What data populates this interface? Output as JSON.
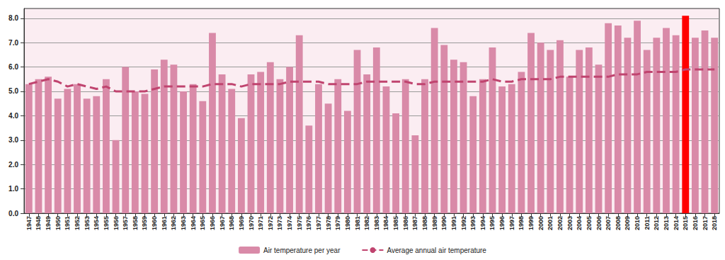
{
  "chart_data": {
    "type": "bar",
    "categories": [
      "1947",
      "1948",
      "1949",
      "1950",
      "1951",
      "1952",
      "1953",
      "1954",
      "1955",
      "1956",
      "1957",
      "1958",
      "1959",
      "1960",
      "1961",
      "1962",
      "1963",
      "1964",
      "1965",
      "1966",
      "1967",
      "1968",
      "1969",
      "1970",
      "1971",
      "1972",
      "1973",
      "1974",
      "1975",
      "1976",
      "1977",
      "1978",
      "1979",
      "1980",
      "1981",
      "1982",
      "1983",
      "1984",
      "1985",
      "1986",
      "1987",
      "1988",
      "1989",
      "1990",
      "1991",
      "1992",
      "1993",
      "1994",
      "1995",
      "1996",
      "1997",
      "1998",
      "1999",
      "2000",
      "2001",
      "2002",
      "2003",
      "2004",
      "2005",
      "2006",
      "2007",
      "2008",
      "2009",
      "2010",
      "2011",
      "2012",
      "2013",
      "2014",
      "2015",
      "2016",
      "2017",
      "2018"
    ],
    "series": [
      {
        "name": "Air temperature per year",
        "type": "bar",
        "colors": [
          "#d98aa8",
          "#d98aa8",
          "#d98aa8",
          "#d98aa8",
          "#d98aa8",
          "#d98aa8",
          "#d98aa8",
          "#d98aa8",
          "#d98aa8",
          "#d98aa8",
          "#d98aa8",
          "#d98aa8",
          "#d98aa8",
          "#d98aa8",
          "#d98aa8",
          "#d98aa8",
          "#d98aa8",
          "#d98aa8",
          "#d98aa8",
          "#d98aa8",
          "#d98aa8",
          "#d98aa8",
          "#d98aa8",
          "#d98aa8",
          "#d98aa8",
          "#d98aa8",
          "#d98aa8",
          "#d98aa8",
          "#d98aa8",
          "#d98aa8",
          "#d98aa8",
          "#d98aa8",
          "#d98aa8",
          "#d98aa8",
          "#d98aa8",
          "#d98aa8",
          "#d98aa8",
          "#d98aa8",
          "#d98aa8",
          "#d98aa8",
          "#d98aa8",
          "#d98aa8",
          "#d98aa8",
          "#d98aa8",
          "#d98aa8",
          "#d98aa8",
          "#d98aa8",
          "#d98aa8",
          "#d98aa8",
          "#d98aa8",
          "#d98aa8",
          "#d98aa8",
          "#d98aa8",
          "#d98aa8",
          "#d98aa8",
          "#d98aa8",
          "#d98aa8",
          "#d98aa8",
          "#d98aa8",
          "#d98aa8",
          "#d98aa8",
          "#d98aa8",
          "#d98aa8",
          "#d98aa8",
          "#d98aa8",
          "#d98aa8",
          "#d98aa8",
          "#d98aa8",
          "#ff0000",
          "#d98aa8",
          "#d98aa8",
          "#d98aa8"
        ],
        "values": [
          5.3,
          5.5,
          5.6,
          4.7,
          5.1,
          5.3,
          4.7,
          4.8,
          5.5,
          3.0,
          6.0,
          5.0,
          4.9,
          5.9,
          6.3,
          6.1,
          5.0,
          5.3,
          4.6,
          7.4,
          5.7,
          5.1,
          3.9,
          5.7,
          5.8,
          6.2,
          5.5,
          6.0,
          7.3,
          3.6,
          5.3,
          4.5,
          5.5,
          4.2,
          6.7,
          5.7,
          6.8,
          5.2,
          4.1,
          5.5,
          3.2,
          5.5,
          7.6,
          6.9,
          6.3,
          6.2,
          4.8,
          5.5,
          6.8,
          5.2,
          5.3,
          5.8,
          7.4,
          7.0,
          6.7,
          7.1,
          5.6,
          6.7,
          6.8,
          6.1,
          7.8,
          7.7,
          7.2,
          7.9,
          6.7,
          7.2,
          7.6,
          7.3,
          8.1,
          7.2,
          7.5,
          7.2
        ]
      },
      {
        "name": "Average annual air temperature",
        "type": "line",
        "color": "#c0446f",
        "line_style": "dashed",
        "values": [
          5.3,
          5.4,
          5.5,
          5.4,
          5.2,
          5.3,
          5.2,
          5.1,
          5.2,
          5.0,
          5.0,
          5.0,
          5.0,
          5.1,
          5.2,
          5.2,
          5.2,
          5.2,
          5.2,
          5.3,
          5.3,
          5.3,
          5.2,
          5.3,
          5.3,
          5.3,
          5.3,
          5.4,
          5.4,
          5.4,
          5.4,
          5.3,
          5.3,
          5.3,
          5.3,
          5.4,
          5.4,
          5.4,
          5.4,
          5.4,
          5.3,
          5.3,
          5.4,
          5.4,
          5.4,
          5.4,
          5.4,
          5.4,
          5.5,
          5.4,
          5.4,
          5.5,
          5.5,
          5.5,
          5.5,
          5.6,
          5.6,
          5.6,
          5.6,
          5.6,
          5.6,
          5.7,
          5.7,
          5.7,
          5.8,
          5.8,
          5.8,
          5.8,
          5.9,
          5.9,
          5.9,
          5.9
        ]
      }
    ],
    "ylim": [
      0,
      8.4
    ],
    "yticks": [
      {
        "value": 0,
        "label": "0.0"
      },
      {
        "value": 1,
        "label": "1.0"
      },
      {
        "value": 2,
        "label": "2.0"
      },
      {
        "value": 3,
        "label": "3.0"
      },
      {
        "value": 4,
        "label": "4.0"
      },
      {
        "value": 5,
        "label": "5.0"
      },
      {
        "value": 6,
        "label": "6.0"
      },
      {
        "value": 7,
        "label": "7.0"
      },
      {
        "value": 8,
        "label": "8.0"
      }
    ],
    "grid": true,
    "legend": "bottom"
  }
}
